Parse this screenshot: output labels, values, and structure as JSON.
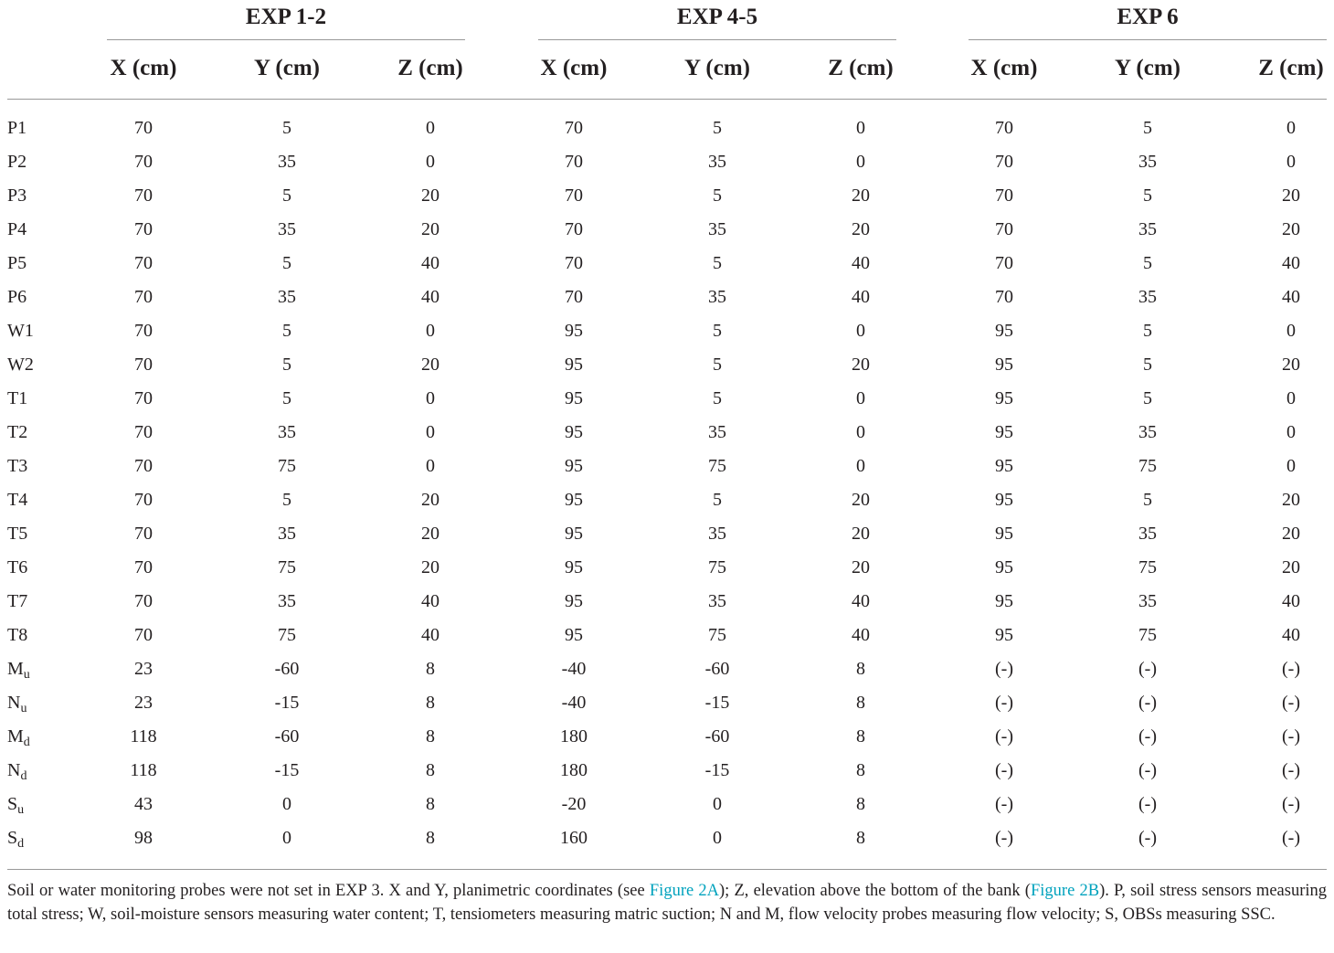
{
  "groups": [
    {
      "label": "EXP 1-2"
    },
    {
      "label": "EXP 4-5"
    },
    {
      "label": "EXP 6"
    }
  ],
  "column_headers": [
    "X (cm)",
    "Y (cm)",
    "Z (cm)",
    "X (cm)",
    "Y (cm)",
    "Z (cm)",
    "X (cm)",
    "Y (cm)",
    "Z (cm)"
  ],
  "rows": [
    {
      "label": "P",
      "sub": "1",
      "inline": true,
      "values": [
        "70",
        "5",
        "0",
        "70",
        "5",
        "0",
        "70",
        "5",
        "0"
      ]
    },
    {
      "label": "P",
      "sub": "2",
      "inline": true,
      "values": [
        "70",
        "35",
        "0",
        "70",
        "35",
        "0",
        "70",
        "35",
        "0"
      ]
    },
    {
      "label": "P",
      "sub": "3",
      "inline": true,
      "values": [
        "70",
        "5",
        "20",
        "70",
        "5",
        "20",
        "70",
        "5",
        "20"
      ]
    },
    {
      "label": "P",
      "sub": "4",
      "inline": true,
      "values": [
        "70",
        "35",
        "20",
        "70",
        "35",
        "20",
        "70",
        "35",
        "20"
      ]
    },
    {
      "label": "P",
      "sub": "5",
      "inline": true,
      "values": [
        "70",
        "5",
        "40",
        "70",
        "5",
        "40",
        "70",
        "5",
        "40"
      ]
    },
    {
      "label": "P",
      "sub": "6",
      "inline": true,
      "values": [
        "70",
        "35",
        "40",
        "70",
        "35",
        "40",
        "70",
        "35",
        "40"
      ]
    },
    {
      "label": "W",
      "sub": "1",
      "inline": true,
      "values": [
        "70",
        "5",
        "0",
        "95",
        "5",
        "0",
        "95",
        "5",
        "0"
      ]
    },
    {
      "label": "W",
      "sub": "2",
      "inline": true,
      "values": [
        "70",
        "5",
        "20",
        "95",
        "5",
        "20",
        "95",
        "5",
        "20"
      ]
    },
    {
      "label": "T",
      "sub": "1",
      "inline": true,
      "values": [
        "70",
        "5",
        "0",
        "95",
        "5",
        "0",
        "95",
        "5",
        "0"
      ]
    },
    {
      "label": "T",
      "sub": "2",
      "inline": true,
      "values": [
        "70",
        "35",
        "0",
        "95",
        "35",
        "0",
        "95",
        "35",
        "0"
      ]
    },
    {
      "label": "T",
      "sub": "3",
      "inline": true,
      "values": [
        "70",
        "75",
        "0",
        "95",
        "75",
        "0",
        "95",
        "75",
        "0"
      ]
    },
    {
      "label": "T",
      "sub": "4",
      "inline": true,
      "values": [
        "70",
        "5",
        "20",
        "95",
        "5",
        "20",
        "95",
        "5",
        "20"
      ]
    },
    {
      "label": "T",
      "sub": "5",
      "inline": true,
      "values": [
        "70",
        "35",
        "20",
        "95",
        "35",
        "20",
        "95",
        "35",
        "20"
      ]
    },
    {
      "label": "T",
      "sub": "6",
      "inline": true,
      "values": [
        "70",
        "75",
        "20",
        "95",
        "75",
        "20",
        "95",
        "75",
        "20"
      ]
    },
    {
      "label": "T",
      "sub": "7",
      "inline": true,
      "values": [
        "70",
        "35",
        "40",
        "95",
        "35",
        "40",
        "95",
        "35",
        "40"
      ]
    },
    {
      "label": "T",
      "sub": "8",
      "inline": true,
      "values": [
        "70",
        "75",
        "40",
        "95",
        "75",
        "40",
        "95",
        "75",
        "40"
      ]
    },
    {
      "label": "M",
      "sub": "u",
      "inline": false,
      "values": [
        "23",
        "-60",
        "8",
        "-40",
        "-60",
        "8",
        "(-)",
        "(-)",
        "(-)"
      ]
    },
    {
      "label": "N",
      "sub": "u",
      "inline": false,
      "values": [
        "23",
        "-15",
        "8",
        "-40",
        "-15",
        "8",
        "(-)",
        "(-)",
        "(-)"
      ]
    },
    {
      "label": "M",
      "sub": "d",
      "inline": false,
      "values": [
        "118",
        "-60",
        "8",
        "180",
        "-60",
        "8",
        "(-)",
        "(-)",
        "(-)"
      ]
    },
    {
      "label": "N",
      "sub": "d",
      "inline": false,
      "values": [
        "118",
        "-15",
        "8",
        "180",
        "-15",
        "8",
        "(-)",
        "(-)",
        "(-)"
      ]
    },
    {
      "label": "S",
      "sub": "u",
      "inline": false,
      "values": [
        "43",
        "0",
        "8",
        "-20",
        "0",
        "8",
        "(-)",
        "(-)",
        "(-)"
      ]
    },
    {
      "label": "S",
      "sub": "d",
      "inline": false,
      "values": [
        "98",
        "0",
        "8",
        "160",
        "0",
        "8",
        "(-)",
        "(-)",
        "(-)"
      ]
    }
  ],
  "footnote": {
    "text_1": "Soil or water monitoring probes were not set in EXP 3. X and Y, planimetric coordinates (see ",
    "link_1": "Figure 2A",
    "text_2": "); Z, elevation above the bottom of the bank (",
    "link_2": "Figure 2B",
    "text_3": "). P, soil stress sensors measuring total stress; W, soil-moisture sensors measuring water content; T, tensiometers measuring matric suction; N and M, flow velocity probes measuring flow velocity; S, OBSs measuring SSC.",
    "link_color": "#00a2bd"
  }
}
